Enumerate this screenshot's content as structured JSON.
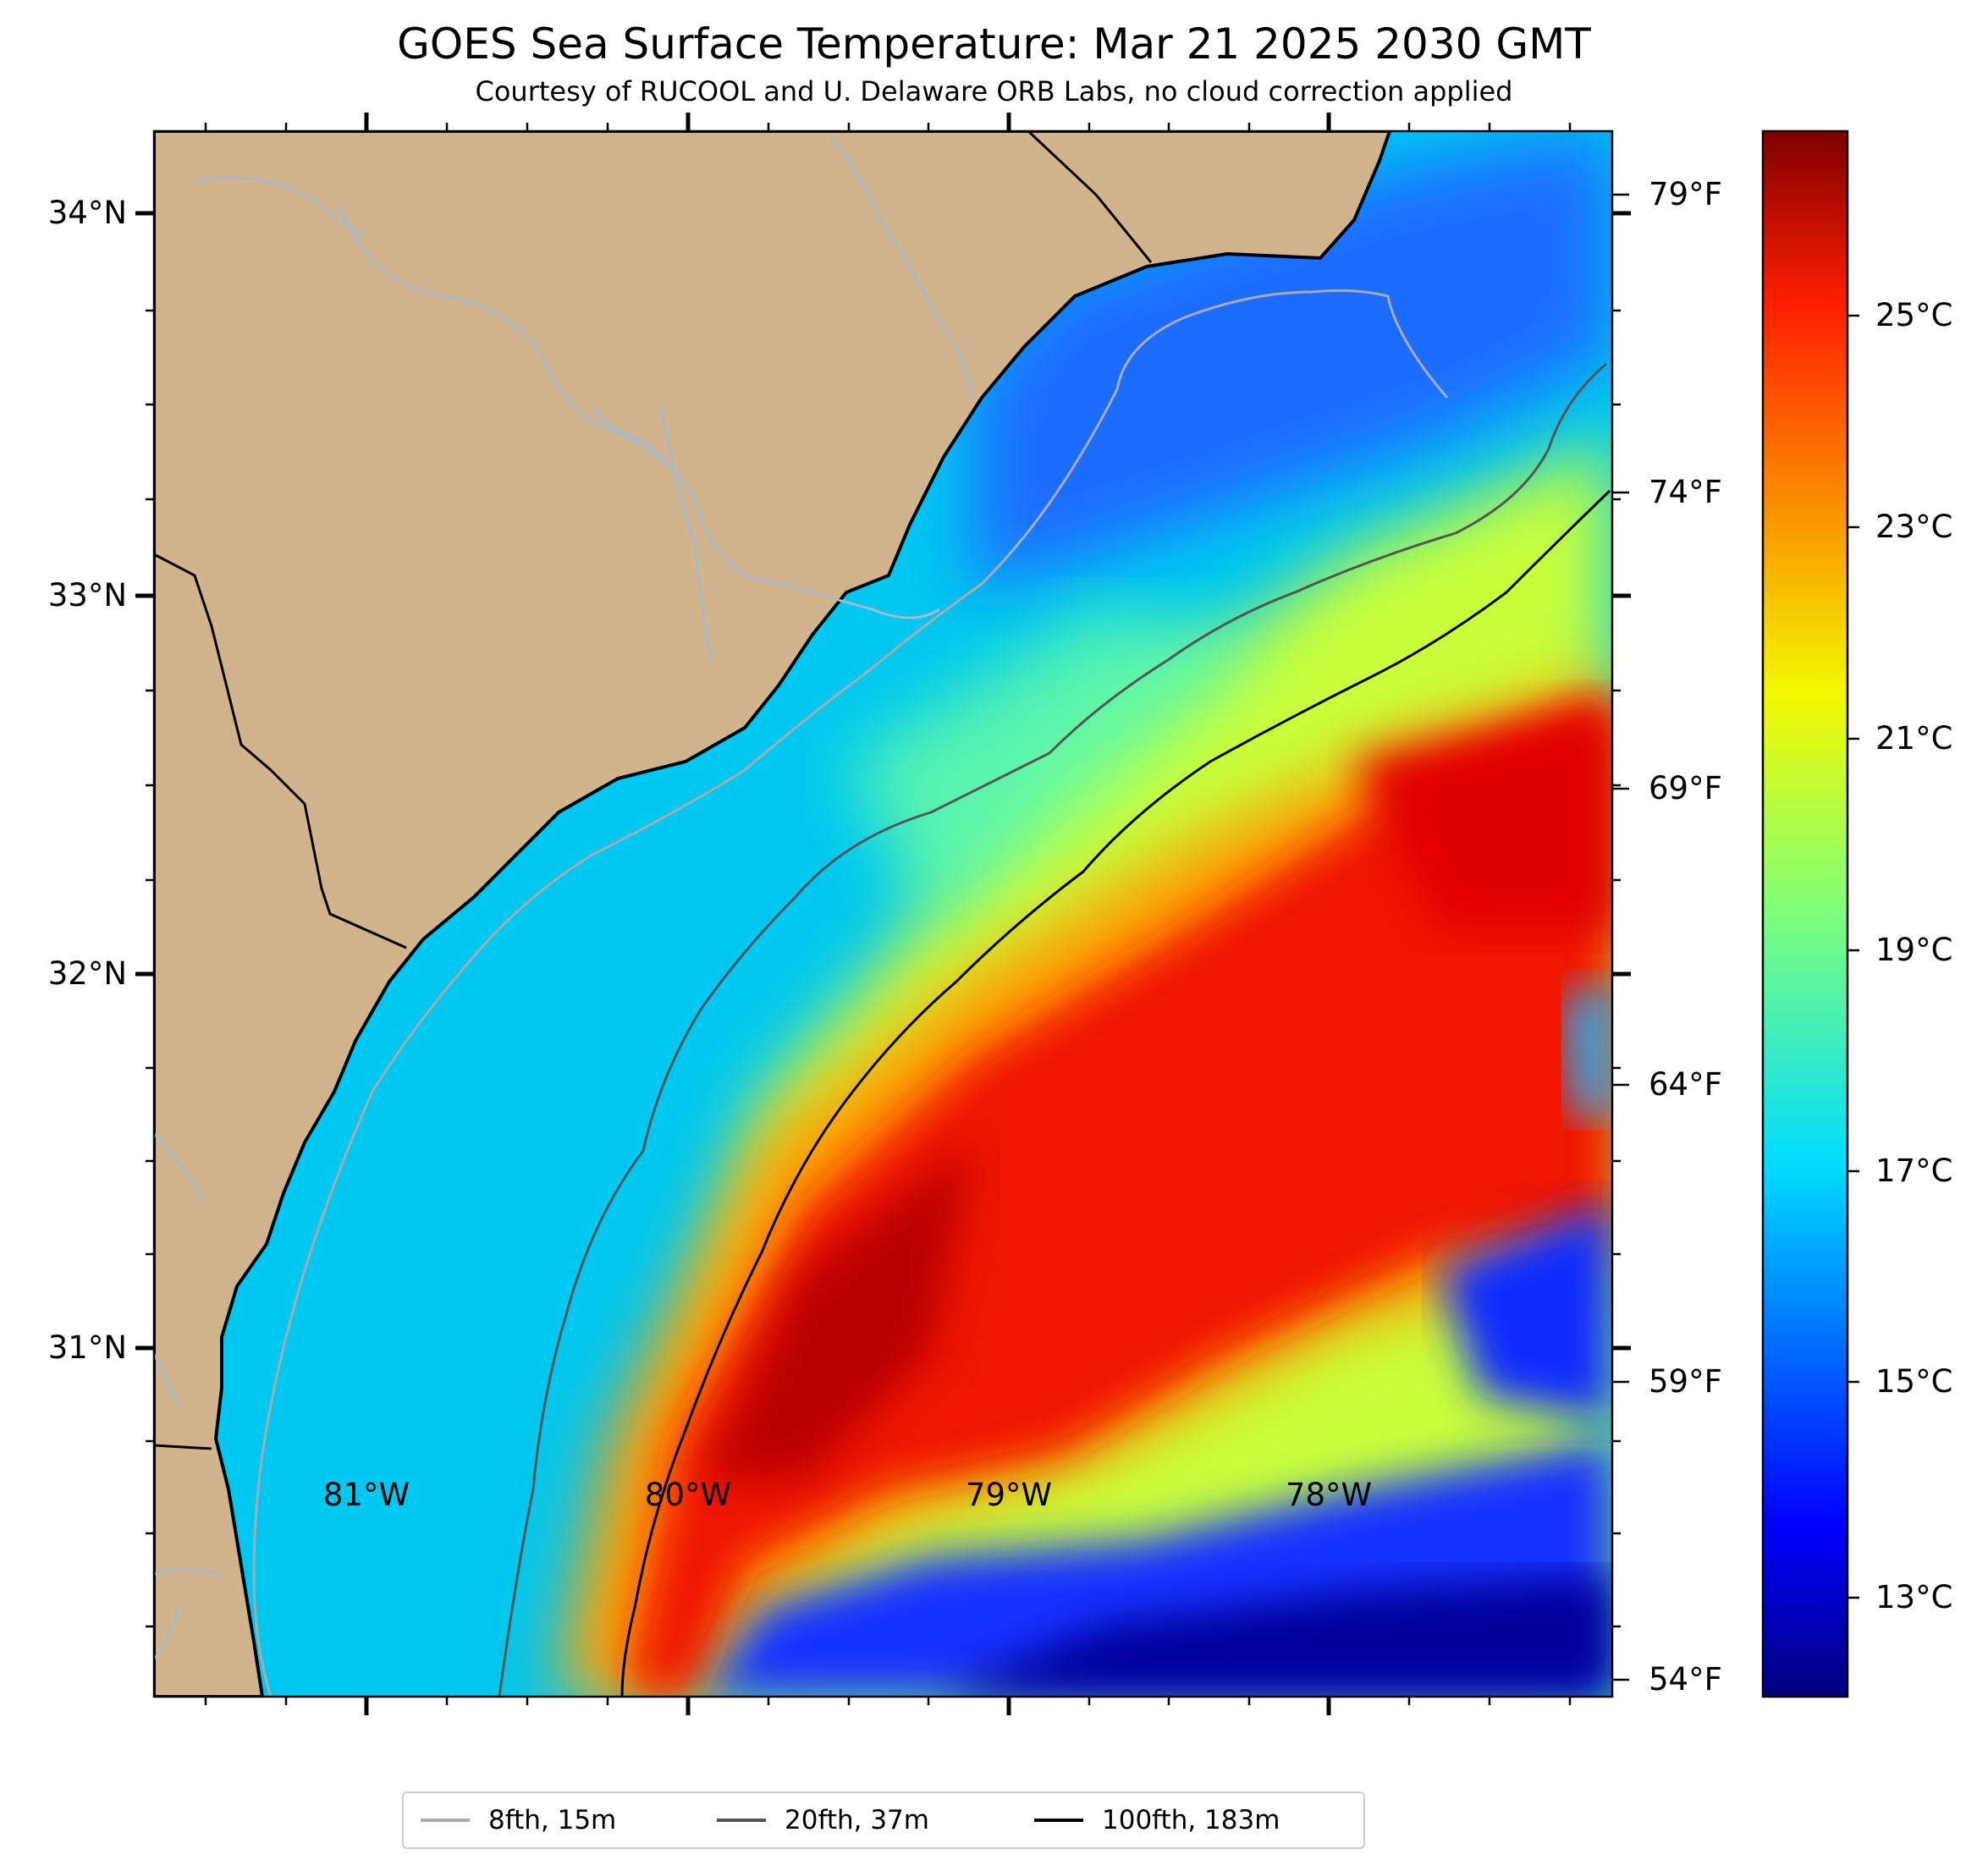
{
  "title": "GOES Sea Surface Temperature: Mar 21 2025 2030 GMT",
  "subtitle": "Courtesy of RUCOOL and U. Delaware ORB Labs, no cloud correction applied",
  "map": {
    "lat_ticks": [
      "34°N",
      "33°N",
      "32°N",
      "31°N"
    ],
    "lon_ticks": [
      "81°W",
      "80°W",
      "79°W",
      "78°W"
    ],
    "fahrenheit_ticks": [
      "79°F",
      "74°F",
      "69°F",
      "64°F",
      "59°F",
      "54°F"
    ],
    "lon_range": [
      -81.66,
      -77.12
    ],
    "lat_range": [
      30.08,
      34.22
    ],
    "land_color": "#d2b48c",
    "coastline_color": "#000000",
    "river_color": "#a9b9cc"
  },
  "colorbar": {
    "labels": [
      "25°C",
      "23°C",
      "21°C",
      "19°C",
      "17°C",
      "15°C",
      "13°C"
    ],
    "colormap": "jet",
    "range_c": [
      12.2,
      27.0
    ]
  },
  "legend": {
    "items": [
      {
        "label": "8fth, 15m",
        "color": "#aaaaaa"
      },
      {
        "label": "20fth, 37m",
        "color": "#555555"
      },
      {
        "label": "100fth, 183m",
        "color": "#000000"
      }
    ]
  }
}
